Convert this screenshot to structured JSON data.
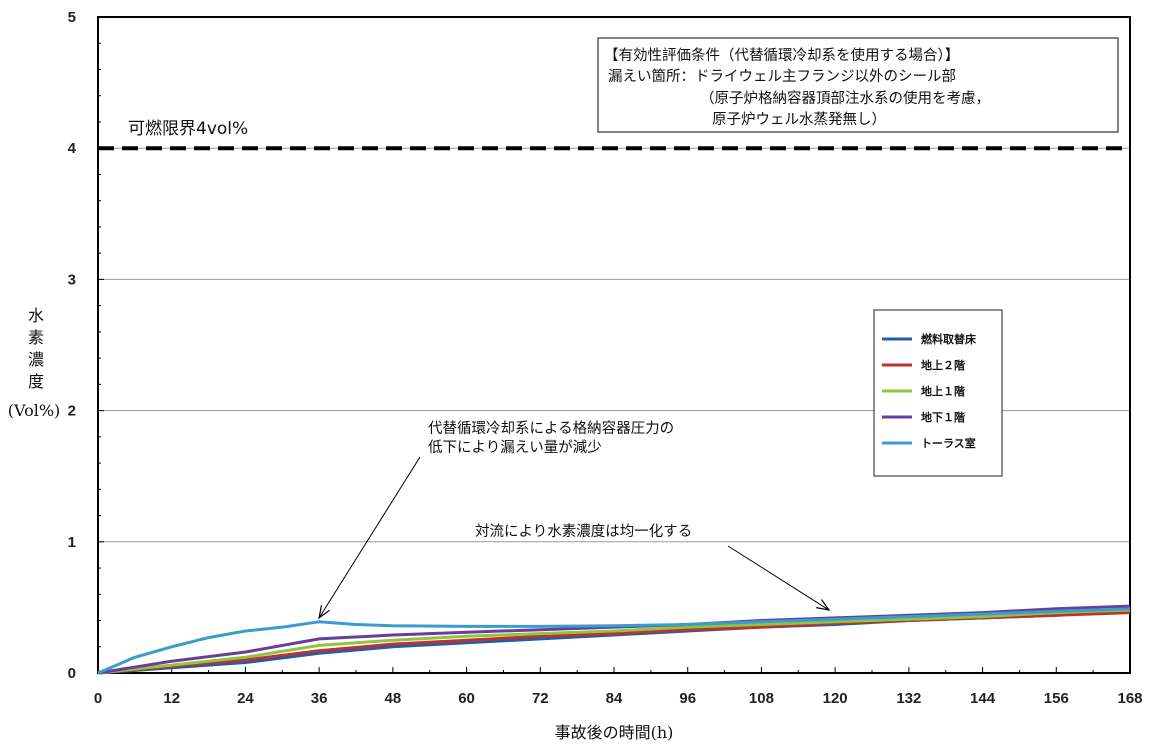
{
  "chart_data": {
    "type": "line",
    "xlabel": "事故後の時間(h)",
    "ylabel_chars": [
      "水",
      "素",
      "濃",
      "度"
    ],
    "ylabel_unit": "(Vol%)",
    "xlim": [
      0,
      168
    ],
    "ylim": [
      0,
      5
    ],
    "xticks": [
      0,
      12,
      24,
      36,
      48,
      60,
      72,
      84,
      96,
      108,
      120,
      132,
      144,
      156,
      168
    ],
    "yticks": [
      0,
      1,
      2,
      3,
      4,
      5
    ],
    "grid": "horizontal",
    "legend_placement": "right",
    "series": [
      {
        "name": "燃料取替床",
        "color": "#1f5fa8",
        "x": [
          0,
          12,
          24,
          36,
          48,
          60,
          72,
          84,
          96,
          108,
          120,
          132,
          144,
          156,
          168
        ],
        "y": [
          0,
          0.04,
          0.08,
          0.15,
          0.2,
          0.23,
          0.26,
          0.29,
          0.32,
          0.35,
          0.37,
          0.4,
          0.42,
          0.44,
          0.47
        ]
      },
      {
        "name": "地上２階",
        "color": "#c0302e",
        "x": [
          0,
          12,
          24,
          36,
          48,
          60,
          72,
          84,
          96,
          108,
          120,
          132,
          144,
          156,
          168
        ],
        "y": [
          0,
          0.05,
          0.1,
          0.17,
          0.22,
          0.25,
          0.28,
          0.3,
          0.33,
          0.35,
          0.38,
          0.4,
          0.42,
          0.44,
          0.46
        ]
      },
      {
        "name": "地上１階",
        "color": "#8dc63f",
        "x": [
          0,
          12,
          24,
          36,
          48,
          60,
          72,
          84,
          96,
          108,
          120,
          132,
          144,
          156,
          168
        ],
        "y": [
          0,
          0.06,
          0.12,
          0.21,
          0.25,
          0.28,
          0.3,
          0.32,
          0.35,
          0.37,
          0.39,
          0.41,
          0.43,
          0.46,
          0.48
        ]
      },
      {
        "name": "地下１階",
        "color": "#6a3d9a",
        "x": [
          0,
          12,
          24,
          36,
          48,
          60,
          72,
          84,
          96,
          108,
          120,
          132,
          144,
          156,
          168
        ],
        "y": [
          0,
          0.09,
          0.16,
          0.26,
          0.29,
          0.31,
          0.33,
          0.35,
          0.37,
          0.4,
          0.42,
          0.44,
          0.46,
          0.49,
          0.51
        ]
      },
      {
        "name": "トーラス室",
        "color": "#3a9ccc",
        "x": [
          0,
          6,
          12,
          18,
          24,
          30,
          36,
          42,
          48,
          60,
          72,
          84,
          96,
          108,
          120,
          132,
          144,
          156,
          168
        ],
        "y": [
          0,
          0.12,
          0.2,
          0.27,
          0.32,
          0.35,
          0.39,
          0.37,
          0.36,
          0.355,
          0.355,
          0.36,
          0.37,
          0.39,
          0.41,
          0.43,
          0.45,
          0.47,
          0.49
        ]
      }
    ],
    "threshold": {
      "value": 4,
      "label": "可燃限界4vol%",
      "style": "dashed"
    },
    "conditions_box": [
      "【有効性評価条件（代替循環冷却系を使用する場合）】",
      "漏えい箇所：ドライウェル主フランジ以外のシール部",
      "（原子炉格納容器頂部注水系の使用を考慮，",
      "原子炉ウェル水蒸発無し）"
    ],
    "annotations": [
      {
        "lines": [
          "代替循環冷却系による格納容器圧力の",
          "低下により漏えい量が減少"
        ],
        "arrow_to": {
          "x": 36,
          "y": 0.4
        }
      },
      {
        "lines": [
          "対流により水素濃度は均一化する"
        ],
        "arrow_to": {
          "x": 119,
          "y": 0.45
        }
      }
    ]
  }
}
